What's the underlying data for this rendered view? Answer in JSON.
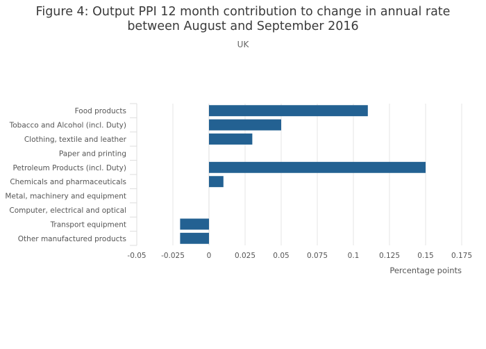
{
  "chart_data": {
    "type": "bar",
    "orientation": "horizontal",
    "title_lines": [
      "Figure 4: Output PPI 12 month contribution to change in annual rate",
      "between August and September 2016"
    ],
    "subtitle": "UK",
    "xlabel": "Percentage points",
    "ylabel": "",
    "xlim": [
      -0.05,
      0.175
    ],
    "x_ticks": [
      -0.05,
      -0.025,
      0,
      0.025,
      0.05,
      0.075,
      0.1,
      0.125,
      0.15,
      0.175
    ],
    "x_tick_labels": [
      "-0.05",
      "-0.025",
      "0",
      "0.025",
      "0.05",
      "0.075",
      "0.1",
      "0.125",
      "0.15",
      "0.175"
    ],
    "grid": true,
    "legend": "none",
    "bar_color": "#236192",
    "categories": [
      "Food products",
      "Tobacco and Alcohol (incl. Duty)",
      "Clothing, textile and leather",
      "Paper and printing",
      "Petroleum Products (incl. Duty)",
      "Chemicals and pharmaceuticals",
      "Metal, machinery and equipment",
      "Computer, electrical and optical",
      "Transport equipment",
      "Other manufactured products"
    ],
    "values": [
      0.11,
      0.05,
      0.03,
      0,
      0.15,
      0.01,
      0,
      0,
      -0.02,
      -0.02
    ]
  }
}
